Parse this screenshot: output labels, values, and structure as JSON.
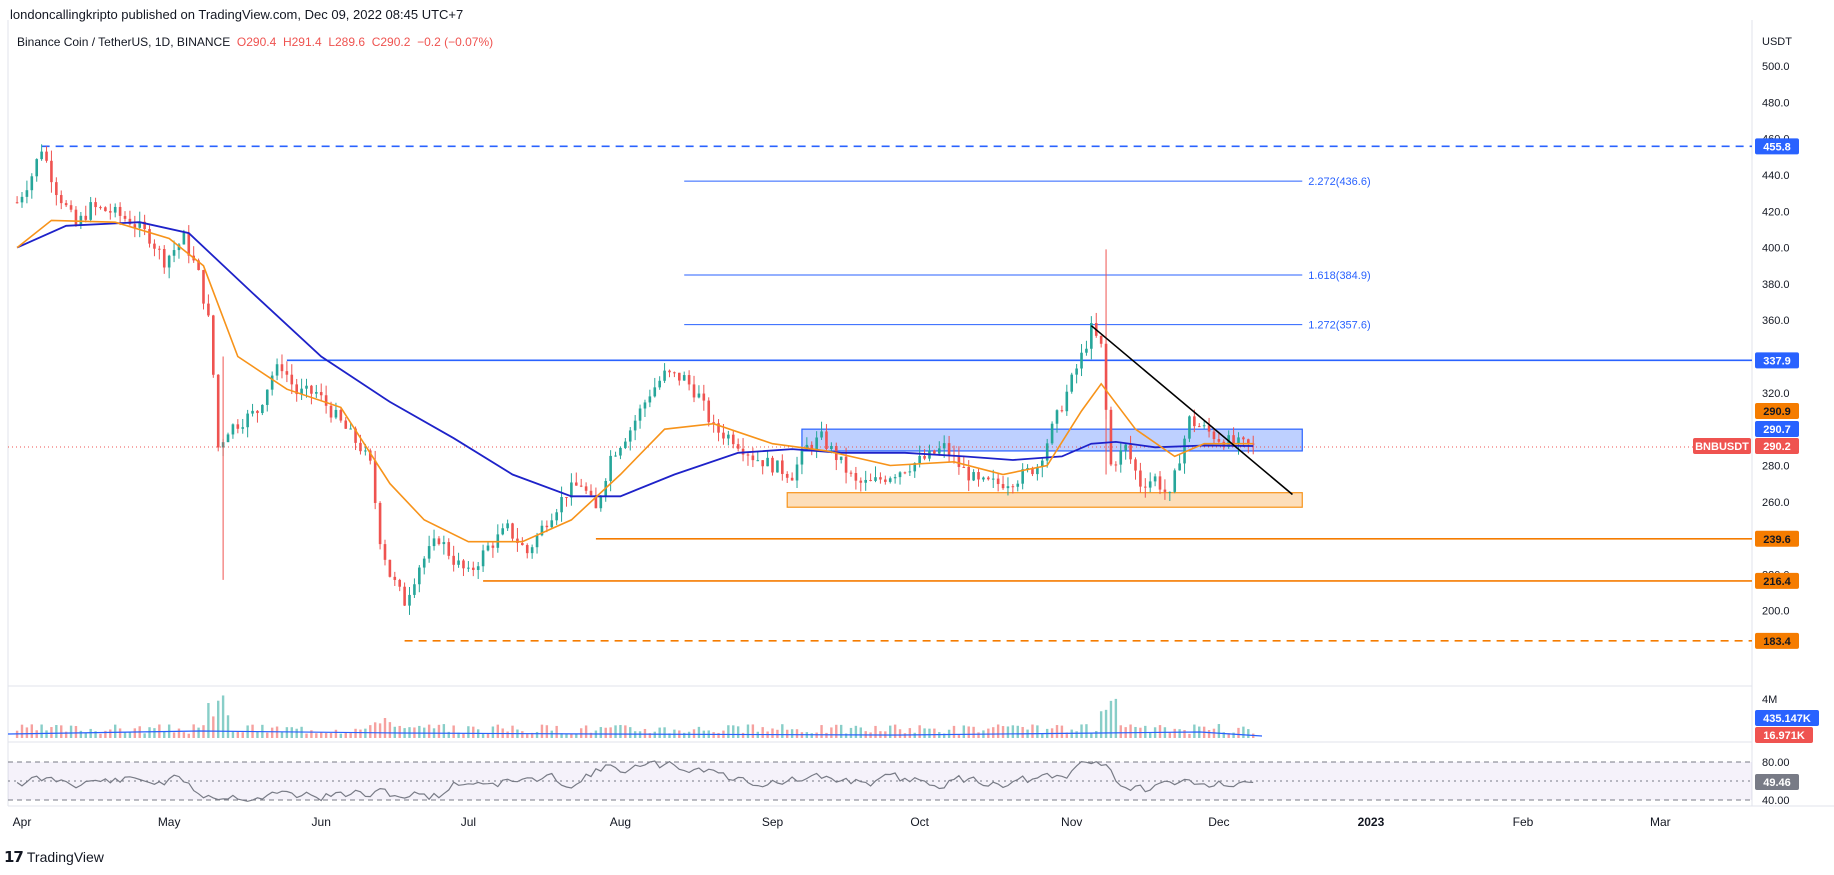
{
  "header": {
    "publisher": "londoncallingkripto published on TradingView.com, Dec 09, 2022 08:45 UTC+7",
    "symbol": "Binance Coin / TetherUS, 1D, BINANCE",
    "ohlc": {
      "o": "O290.4",
      "h": "H291.4",
      "l": "L289.6",
      "c": "C290.2",
      "chg": "−0.2 (−0.07%)"
    }
  },
  "footer": {
    "brand": "TradingView"
  },
  "colors": {
    "up": "#26a69a",
    "down": "#ef5350",
    "ema_fast": "#f7931a",
    "ema_slow": "#1e22c9",
    "blue_level": "#2962ff",
    "orange_level": "#f57c00",
    "text": "#131722",
    "axis": "#e0e3eb"
  },
  "chart_data": {
    "type": "line",
    "title": "Binance Coin / TetherUS, 1D, BINANCE",
    "ylabel": "USDT",
    "ylim": [
      180,
      505
    ],
    "y_ticks": [
      "200.0",
      "220.0",
      "240.0",
      "260.0",
      "280.0",
      "300.0",
      "320.0",
      "340.0",
      "360.0",
      "380.0",
      "400.0",
      "420.0",
      "440.0",
      "460.0",
      "480.0",
      "500.0"
    ],
    "x_ticks": [
      "Apr",
      "May",
      "Jun",
      "Jul",
      "Aug",
      "Sep",
      "Oct",
      "Nov",
      "Dec",
      "2023",
      "Feb",
      "Mar"
    ],
    "x_tick_dates": [
      "2022-04-01",
      "2022-05-01",
      "2022-06-01",
      "2022-07-01",
      "2022-08-01",
      "2022-09-01",
      "2022-10-01",
      "2022-11-01",
      "2022-12-01",
      "2023-01-01",
      "2023-02-01",
      "2023-03-01"
    ],
    "price_series": {
      "name": "BNBUSDT",
      "points": [
        [
          "2022-03-31",
          425
        ],
        [
          "2022-04-03",
          440
        ],
        [
          "2022-04-05",
          455
        ],
        [
          "2022-04-08",
          432
        ],
        [
          "2022-04-12",
          412
        ],
        [
          "2022-04-15",
          422
        ],
        [
          "2022-04-19",
          420
        ],
        [
          "2022-04-23",
          415
        ],
        [
          "2022-04-27",
          406
        ],
        [
          "2022-04-30",
          393
        ],
        [
          "2022-05-04",
          405
        ],
        [
          "2022-05-07",
          385
        ],
        [
          "2022-05-09",
          360
        ],
        [
          "2022-05-10",
          330
        ],
        [
          "2022-05-11",
          290
        ],
        [
          "2022-05-13",
          300
        ],
        [
          "2022-05-16",
          305
        ],
        [
          "2022-05-19",
          310
        ],
        [
          "2022-05-22",
          330
        ],
        [
          "2022-05-24",
          335
        ],
        [
          "2022-05-27",
          320
        ],
        [
          "2022-05-31",
          320
        ],
        [
          "2022-06-03",
          310
        ],
        [
          "2022-06-06",
          300
        ],
        [
          "2022-06-09",
          290
        ],
        [
          "2022-06-11",
          280
        ],
        [
          "2022-06-13",
          240
        ],
        [
          "2022-06-15",
          220
        ],
        [
          "2022-06-18",
          205
        ],
        [
          "2022-06-21",
          225
        ],
        [
          "2022-06-25",
          240
        ],
        [
          "2022-06-28",
          228
        ],
        [
          "2022-07-01",
          220
        ],
        [
          "2022-07-05",
          235
        ],
        [
          "2022-07-09",
          245
        ],
        [
          "2022-07-13",
          232
        ],
        [
          "2022-07-17",
          250
        ],
        [
          "2022-07-21",
          265
        ],
        [
          "2022-07-24",
          270
        ],
        [
          "2022-07-27",
          255
        ],
        [
          "2022-07-30",
          285
        ],
        [
          "2022-08-03",
          300
        ],
        [
          "2022-08-07",
          320
        ],
        [
          "2022-08-10",
          330
        ],
        [
          "2022-08-14",
          328
        ],
        [
          "2022-08-17",
          318
        ],
        [
          "2022-08-20",
          300
        ],
        [
          "2022-08-24",
          295
        ],
        [
          "2022-08-28",
          285
        ],
        [
          "2022-09-01",
          280
        ],
        [
          "2022-09-05",
          275
        ],
        [
          "2022-09-08",
          290
        ],
        [
          "2022-09-11",
          295
        ],
        [
          "2022-09-14",
          285
        ],
        [
          "2022-09-18",
          270
        ],
        [
          "2022-09-21",
          270
        ],
        [
          "2022-09-25",
          275
        ],
        [
          "2022-09-29",
          280
        ],
        [
          "2022-10-03",
          285
        ],
        [
          "2022-10-06",
          290
        ],
        [
          "2022-10-09",
          280
        ],
        [
          "2022-10-13",
          270
        ],
        [
          "2022-10-17",
          270
        ],
        [
          "2022-10-21",
          273
        ],
        [
          "2022-10-25",
          280
        ],
        [
          "2022-10-28",
          300
        ],
        [
          "2022-10-31",
          320
        ],
        [
          "2022-11-03",
          340
        ],
        [
          "2022-11-05",
          355
        ],
        [
          "2022-11-07",
          345
        ],
        [
          "2022-11-08",
          310
        ],
        [
          "2022-11-09",
          280
        ],
        [
          "2022-11-12",
          290
        ],
        [
          "2022-11-15",
          270
        ],
        [
          "2022-11-18",
          273
        ],
        [
          "2022-11-21",
          262
        ],
        [
          "2022-11-23",
          285
        ],
        [
          "2022-11-25",
          305
        ],
        [
          "2022-11-28",
          300
        ],
        [
          "2022-12-01",
          295
        ],
        [
          "2022-12-04",
          292
        ],
        [
          "2022-12-08",
          290.2
        ]
      ]
    },
    "ema_fast": {
      "points": [
        [
          "2022-03-31",
          400
        ],
        [
          "2022-04-07",
          415
        ],
        [
          "2022-04-20",
          414
        ],
        [
          "2022-05-01",
          405
        ],
        [
          "2022-05-08",
          390
        ],
        [
          "2022-05-15",
          340
        ],
        [
          "2022-05-25",
          322
        ],
        [
          "2022-06-05",
          312
        ],
        [
          "2022-06-15",
          270
        ],
        [
          "2022-06-22",
          250
        ],
        [
          "2022-07-01",
          238
        ],
        [
          "2022-07-12",
          238
        ],
        [
          "2022-07-22",
          250
        ],
        [
          "2022-08-01",
          275
        ],
        [
          "2022-08-10",
          300
        ],
        [
          "2022-08-20",
          303
        ],
        [
          "2022-09-01",
          292
        ],
        [
          "2022-09-12",
          288
        ],
        [
          "2022-09-25",
          280
        ],
        [
          "2022-10-08",
          282
        ],
        [
          "2022-10-18",
          275
        ],
        [
          "2022-10-27",
          280
        ],
        [
          "2022-11-03",
          310
        ],
        [
          "2022-11-07",
          325
        ],
        [
          "2022-11-14",
          300
        ],
        [
          "2022-11-22",
          285
        ],
        [
          "2022-11-28",
          292
        ],
        [
          "2022-12-08",
          292
        ]
      ]
    },
    "ema_slow": {
      "points": [
        [
          "2022-03-31",
          400
        ],
        [
          "2022-04-10",
          412
        ],
        [
          "2022-04-25",
          414
        ],
        [
          "2022-05-05",
          408
        ],
        [
          "2022-05-18",
          375
        ],
        [
          "2022-06-01",
          340
        ],
        [
          "2022-06-15",
          315
        ],
        [
          "2022-06-28",
          295
        ],
        [
          "2022-07-10",
          275
        ],
        [
          "2022-07-22",
          263
        ],
        [
          "2022-08-01",
          263
        ],
        [
          "2022-08-12",
          275
        ],
        [
          "2022-08-25",
          287
        ],
        [
          "2022-09-05",
          289
        ],
        [
          "2022-09-15",
          287
        ],
        [
          "2022-09-28",
          287
        ],
        [
          "2022-10-10",
          285
        ],
        [
          "2022-10-20",
          283
        ],
        [
          "2022-10-30",
          285
        ],
        [
          "2022-11-05",
          292
        ],
        [
          "2022-11-10",
          293
        ],
        [
          "2022-11-18",
          290
        ],
        [
          "2022-11-28",
          291
        ],
        [
          "2022-12-08",
          290.7
        ]
      ]
    },
    "horizontal_levels": [
      {
        "value": 455.8,
        "label": "455.8",
        "style": "dashed",
        "color": "#2962ff",
        "from": "2022-04-05"
      },
      {
        "value": 337.9,
        "label": "337.9",
        "style": "solid",
        "color": "#2962ff",
        "from": "2022-05-25"
      },
      {
        "value": 239.6,
        "label": "239.6",
        "style": "solid",
        "color": "#f57c00",
        "from": "2022-07-27"
      },
      {
        "value": 216.4,
        "label": "216.4",
        "style": "solid",
        "color": "#f57c00",
        "from": "2022-07-04"
      },
      {
        "value": 183.4,
        "label": "183.4",
        "style": "dashed",
        "color": "#f57c00",
        "from": "2022-06-18"
      }
    ],
    "fib_levels": [
      {
        "value": 436.6,
        "label": "2.272(436.6)",
        "from": "2022-08-14",
        "to": "2022-12-18"
      },
      {
        "value": 384.9,
        "label": "1.618(384.9)",
        "from": "2022-08-14",
        "to": "2022-12-18"
      },
      {
        "value": 357.6,
        "label": "1.272(357.6)",
        "from": "2022-08-14",
        "to": "2022-12-18"
      }
    ],
    "zones": [
      {
        "from": "2022-09-07",
        "to": "2022-12-18",
        "low": 288,
        "high": 300,
        "color": "#2962ff"
      },
      {
        "from": "2022-09-04",
        "to": "2022-12-18",
        "low": 257,
        "high": 265,
        "color": "#f7931a"
      }
    ],
    "trendline": {
      "start": [
        "2022-11-05",
        357
      ],
      "end": [
        "2022-12-16",
        264
      ]
    },
    "wick_markers": [
      {
        "date": "2022-11-08",
        "high": 399,
        "low": 275
      },
      {
        "date": "2022-05-12",
        "high": 340,
        "low": 217
      }
    ],
    "price_badges": [
      {
        "value": 290.9,
        "label": "290.9",
        "color": "#f57c00"
      },
      {
        "value": 290.7,
        "label": "290.7",
        "color": "#2962ff"
      },
      {
        "value": 290.2,
        "label": "290.2",
        "color": "#ef5350",
        "tag": "BNBUSDT"
      }
    ],
    "volume": {
      "ticks": [
        "4M"
      ],
      "badge_primary": "435.147K",
      "badge_secondary": "16.971K"
    },
    "rsi": {
      "upper": "80.00",
      "lower": "40.00",
      "value": "49.46"
    }
  }
}
